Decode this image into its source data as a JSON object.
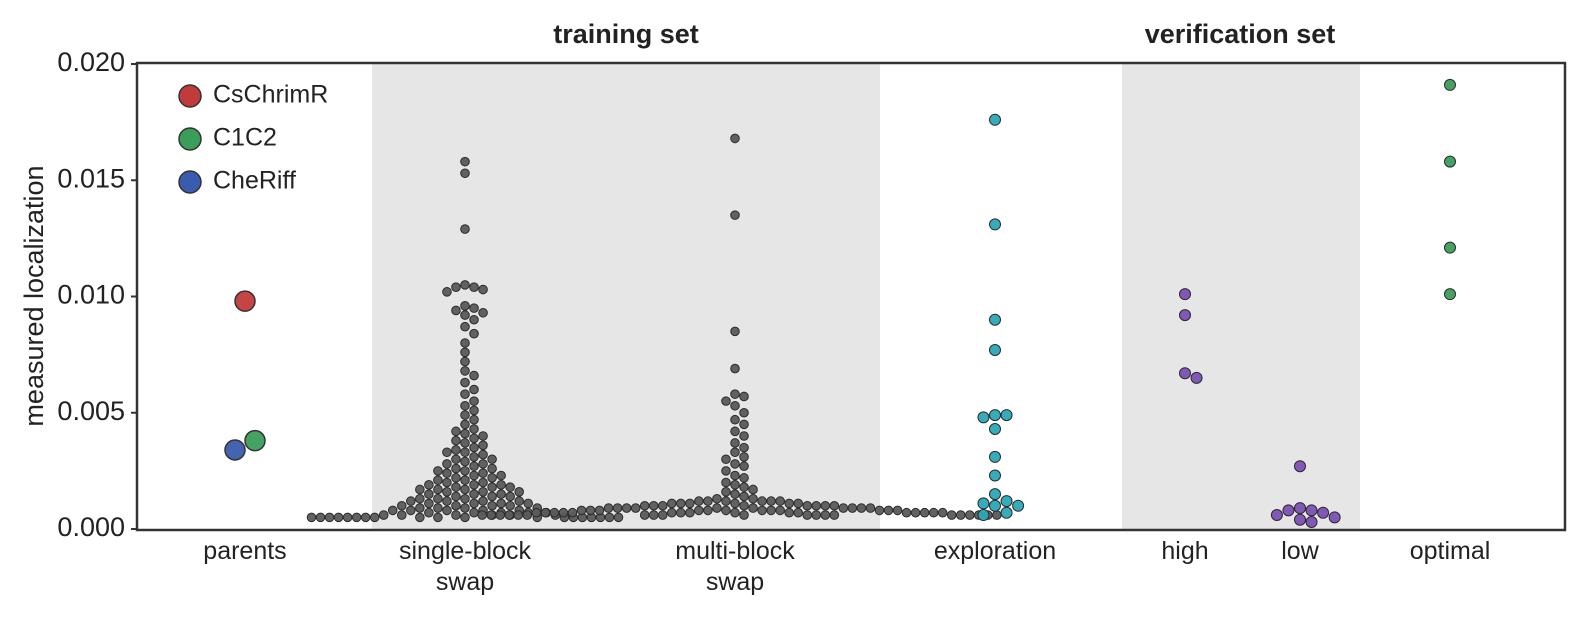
{
  "chart_data": {
    "type": "swarm",
    "group_labels": [
      "training set",
      "verification set"
    ],
    "ylabel": "measured localization",
    "categories": [
      "parents",
      "single-block swap",
      "multi-block swap",
      "exploration",
      "high",
      "low",
      "optimal"
    ],
    "ylim": [
      0,
      0.02
    ],
    "yticks": [
      {
        "value": 0,
        "label": "0.000"
      },
      {
        "value": 0.005,
        "label": "0.005"
      },
      {
        "value": 0.01,
        "label": "0.010"
      },
      {
        "value": 0.015,
        "label": "0.015"
      },
      {
        "value": 0.02,
        "label": "0.020"
      }
    ],
    "series": [
      {
        "name": "CsChrimR",
        "color": "#c23b3b",
        "values": [
          [
            0.0098
          ],
          [],
          [],
          [],
          [],
          [],
          []
        ]
      },
      {
        "name": "C1C2",
        "color": "#3a9e5a",
        "values": [
          [
            0.0038
          ],
          [],
          [],
          [],
          [],
          [],
          []
        ]
      },
      {
        "name": "CheRiff",
        "color": "#3a5cae",
        "values": [
          [
            0.0034
          ],
          [],
          [],
          [],
          [],
          [],
          []
        ]
      },
      {
        "color": "#5a5a5a",
        "values": [
          [],
          [
            0.0158,
            0.0153,
            0.0129,
            0.0105,
            0.0104,
            0.0104,
            0.0103,
            0.0102,
            0.0096,
            0.0095,
            0.0094,
            0.0093,
            0.0092,
            0.009,
            0.0087,
            0.0084,
            0.008,
            0.0076,
            0.0072,
            0.0068,
            0.0066,
            0.0063,
            0.006,
            0.0058,
            0.0055,
            0.0053,
            0.0051,
            0.0049,
            0.0047,
            0.0045,
            0.0043,
            0.0042,
            0.0041,
            0.004,
            0.0039,
            0.0038,
            0.0037,
            0.0036,
            0.0035,
            0.0034,
            0.0033,
            0.0033,
            0.0032,
            0.0031,
            0.003,
            0.003,
            0.0029,
            0.0028,
            0.0028,
            0.0027,
            0.0026,
            0.0026,
            0.0025,
            0.0025,
            0.0024,
            0.0024,
            0.0023,
            0.0023,
            0.0022,
            0.0022,
            0.0021,
            0.0021,
            0.002,
            0.002,
            0.0019,
            0.0019,
            0.0019,
            0.0018,
            0.0018,
            0.0018,
            0.0017,
            0.0017,
            0.0017,
            0.0016,
            0.0016,
            0.0016,
            0.0015,
            0.0015,
            0.0015,
            0.0014,
            0.0014,
            0.0014,
            0.0013,
            0.0013,
            0.0013,
            0.0012,
            0.0012,
            0.0012,
            0.0012,
            0.0011,
            0.0011,
            0.0011,
            0.0011,
            0.001,
            0.001,
            0.001,
            0.001,
            0.0009,
            0.0009,
            0.0009,
            0.0009,
            0.0008,
            0.0008,
            0.0008,
            0.0008,
            0.0008,
            0.0007,
            0.0007,
            0.0007,
            0.0007,
            0.0007,
            0.0006,
            0.0006,
            0.0006,
            0.0006,
            0.0006,
            0.0006,
            0.0005,
            0.0005,
            0.0005,
            0.0005,
            0.0005,
            0.0005,
            0.0005,
            0.0005,
            0.0005,
            0.0005,
            0.0005,
            0.0005,
            0.0005,
            0.0005,
            0.0005,
            0.0005,
            0.0005,
            0.0005,
            0.0005
          ],
          [
            0.0168,
            0.0135,
            0.0085,
            0.0069,
            0.0058,
            0.0057,
            0.0055,
            0.0053,
            0.005,
            0.0047,
            0.0045,
            0.0042,
            0.004,
            0.0037,
            0.0035,
            0.0033,
            0.0031,
            0.003,
            0.0028,
            0.0027,
            0.0025,
            0.0023,
            0.0022,
            0.002,
            0.0019,
            0.0018,
            0.0017,
            0.0016,
            0.0015,
            0.0014,
            0.0013,
            0.0013,
            0.0012,
            0.0012,
            0.0012,
            0.0012,
            0.0012,
            0.0012,
            0.0011,
            0.0011,
            0.0011,
            0.0011,
            0.0011,
            0.0011,
            0.001,
            0.001,
            0.001,
            0.001,
            0.001,
            0.001,
            0.001,
            0.001,
            0.0009,
            0.0009,
            0.0009,
            0.0009,
            0.0009,
            0.0009,
            0.0009,
            0.0009,
            0.0009,
            0.0009,
            0.0008,
            0.0008,
            0.0008,
            0.0008,
            0.0008,
            0.0008,
            0.0008,
            0.0008,
            0.0008,
            0.0008,
            0.0008,
            0.0008,
            0.0007,
            0.0007,
            0.0007,
            0.0007,
            0.0007,
            0.0007,
            0.0007,
            0.0007,
            0.0007,
            0.0007,
            0.0007,
            0.0007,
            0.0007,
            0.0007,
            0.0007,
            0.0007,
            0.0006,
            0.0006,
            0.0006,
            0.0006,
            0.0006,
            0.0006,
            0.0006,
            0.0006,
            0.0006,
            0.0006,
            0.0006,
            0.0006,
            0.0006,
            0.0006,
            0.0006,
            0.0006,
            0.0006,
            0.0006,
            0.0006,
            0.0006
          ],
          [],
          [],
          [],
          []
        ]
      },
      {
        "color": "#2aa8b8",
        "values": [
          [],
          [],
          [],
          [
            0.0176,
            0.0131,
            0.009,
            0.0077,
            0.0049,
            0.0049,
            0.0048,
            0.0043,
            0.0031,
            0.0023,
            0.0015,
            0.0012,
            0.0011,
            0.001,
            0.001,
            0.0007,
            0.0006
          ],
          [],
          [],
          []
        ]
      },
      {
        "color": "#7b4fb5",
        "values": [
          [],
          [],
          [],
          [],
          [
            0.0101,
            0.0092,
            0.0067,
            0.0065
          ],
          [
            0.0027,
            0.0009,
            0.0008,
            0.0008,
            0.0007,
            0.0006,
            0.0005,
            0.0004,
            0.0003
          ],
          []
        ]
      },
      {
        "color": "#3a9e5a",
        "values": [
          [],
          [],
          [],
          [],
          [],
          [],
          [
            0.0191,
            0.0158,
            0.0121,
            0.0101
          ]
        ]
      }
    ]
  }
}
